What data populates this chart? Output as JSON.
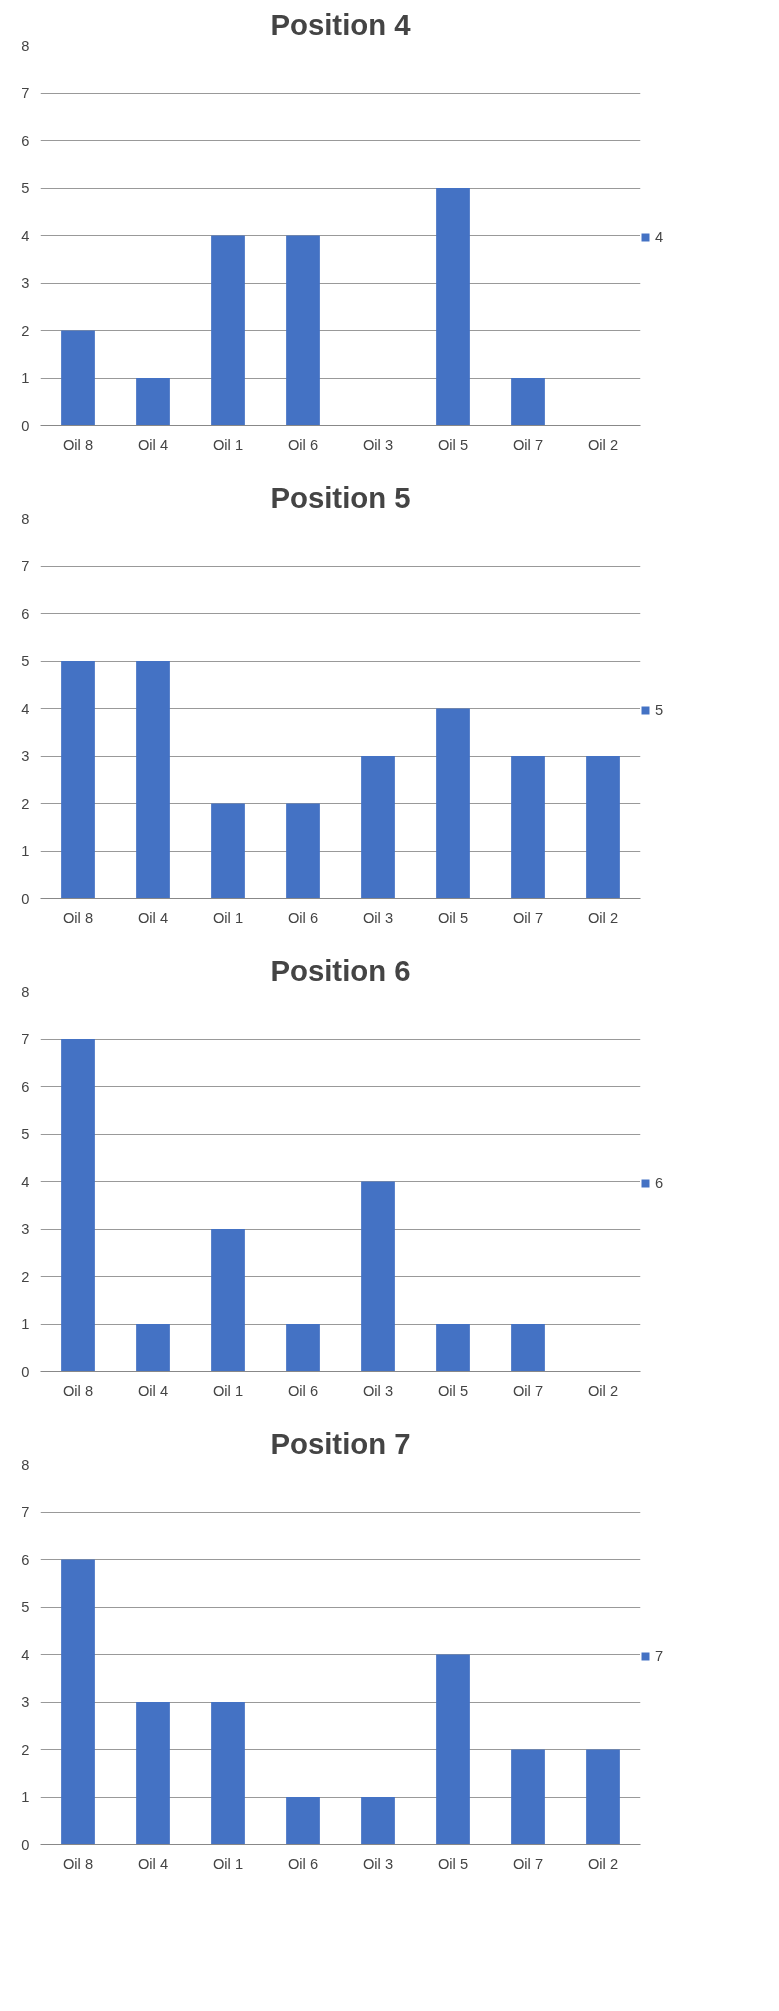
{
  "chart_data": [
    {
      "type": "bar",
      "title": "Position 4",
      "categories": [
        "Oil 8",
        "Oil 4",
        "Oil 1",
        "Oil 6",
        "Oil 3",
        "Oil 5",
        "Oil 7",
        "Oil 2"
      ],
      "series": [
        {
          "name": "4",
          "color": "#4472c4",
          "values": [
            2,
            1,
            4,
            4,
            0,
            5,
            1,
            0
          ]
        }
      ],
      "ylim": [
        0,
        8
      ],
      "yticks": [
        0,
        1,
        2,
        3,
        4,
        5,
        6,
        7,
        8
      ],
      "grid": "y",
      "legend": "right"
    },
    {
      "type": "bar",
      "title": "Position 5",
      "categories": [
        "Oil 8",
        "Oil 4",
        "Oil 1",
        "Oil 6",
        "Oil 3",
        "Oil 5",
        "Oil 7",
        "Oil 2"
      ],
      "series": [
        {
          "name": "5",
          "color": "#4472c4",
          "values": [
            5,
            5,
            2,
            2,
            3,
            4,
            3,
            3
          ]
        }
      ],
      "ylim": [
        0,
        8
      ],
      "yticks": [
        0,
        1,
        2,
        3,
        4,
        5,
        6,
        7,
        8
      ],
      "grid": "y",
      "legend": "right"
    },
    {
      "type": "bar",
      "title": "Position 6",
      "categories": [
        "Oil 8",
        "Oil 4",
        "Oil 1",
        "Oil 6",
        "Oil 3",
        "Oil 5",
        "Oil 7",
        "Oil 2"
      ],
      "series": [
        {
          "name": "6",
          "color": "#4472c4",
          "values": [
            7,
            1,
            3,
            1,
            4,
            1,
            1,
            0
          ]
        }
      ],
      "ylim": [
        0,
        8
      ],
      "yticks": [
        0,
        1,
        2,
        3,
        4,
        5,
        6,
        7,
        8
      ],
      "grid": "y",
      "legend": "right"
    },
    {
      "type": "bar",
      "title": "Position 7",
      "categories": [
        "Oil 8",
        "Oil 4",
        "Oil 1",
        "Oil 6",
        "Oil 3",
        "Oil 5",
        "Oil 7",
        "Oil 2"
      ],
      "series": [
        {
          "name": "7",
          "color": "#4472c4",
          "values": [
            6,
            3,
            3,
            1,
            1,
            4,
            2,
            2
          ]
        }
      ],
      "ylim": [
        0,
        8
      ],
      "yticks": [
        0,
        1,
        2,
        3,
        4,
        5,
        6,
        7,
        8
      ],
      "grid": "y",
      "legend": "right"
    }
  ]
}
